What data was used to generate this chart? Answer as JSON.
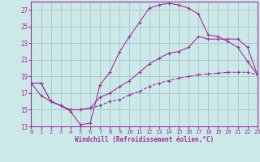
{
  "xlabel": "Windchill (Refroidissement éolien,°C)",
  "background_color": "#cde8e8",
  "grid_color": "#aacccc",
  "line_color": "#993399",
  "x_hours": [
    0,
    1,
    2,
    3,
    4,
    5,
    6,
    7,
    8,
    9,
    10,
    11,
    12,
    13,
    14,
    15,
    16,
    17,
    18,
    19,
    20,
    21,
    22,
    23
  ],
  "series1": [
    18.2,
    16.7,
    16.0,
    15.5,
    14.8,
    13.2,
    13.4,
    18.0,
    19.5,
    22.0,
    23.8,
    25.5,
    27.2,
    27.6,
    27.8,
    27.6,
    27.2,
    26.5,
    24.0,
    23.8,
    23.2,
    22.5,
    20.8,
    19.2
  ],
  "series2": [
    18.2,
    18.2,
    16.0,
    15.5,
    15.0,
    15.0,
    15.2,
    16.5,
    17.0,
    17.8,
    18.5,
    19.5,
    20.5,
    21.2,
    21.8,
    22.0,
    22.5,
    23.8,
    23.5,
    23.5,
    23.5,
    23.5,
    22.5,
    19.2
  ],
  "series3": [
    18.2,
    18.2,
    16.0,
    15.5,
    15.0,
    15.0,
    15.2,
    15.5,
    16.0,
    16.2,
    16.8,
    17.2,
    17.8,
    18.2,
    18.5,
    18.8,
    19.0,
    19.2,
    19.3,
    19.4,
    19.5,
    19.5,
    19.5,
    19.2
  ],
  "ylim": [
    13,
    28
  ],
  "xlim": [
    0,
    23
  ],
  "yticks": [
    13,
    15,
    17,
    19,
    21,
    23,
    25,
    27
  ],
  "xticks": [
    0,
    1,
    2,
    3,
    4,
    5,
    6,
    7,
    8,
    9,
    10,
    11,
    12,
    13,
    14,
    15,
    16,
    17,
    18,
    19,
    20,
    21,
    22,
    23
  ]
}
